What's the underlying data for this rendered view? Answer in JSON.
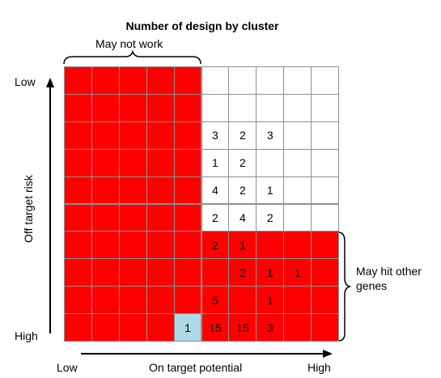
{
  "title": "Number of design by cluster",
  "annotations": {
    "top_brace": "May not work",
    "right_brace_line1": "May hit other",
    "right_brace_line2": "genes"
  },
  "axes": {
    "y_label": "Off target risk",
    "y_low": "Low",
    "y_high": "High",
    "x_label": "On target potential",
    "x_low": "Low",
    "x_high": "High"
  },
  "colors": {
    "red": "#ff0000",
    "white": "#ffffff",
    "highlight": "#add8e6",
    "grid": "#8f8f8f"
  },
  "grid": {
    "rows": [
      {
        "fill": [
          "red",
          "red",
          "red",
          "red",
          "red",
          "white",
          "white",
          "white",
          "white",
          "white"
        ],
        "values": [
          "",
          "",
          "",
          "",
          "",
          "",
          "",
          "",
          "",
          ""
        ]
      },
      {
        "fill": [
          "red",
          "red",
          "red",
          "red",
          "red",
          "white",
          "white",
          "white",
          "white",
          "white"
        ],
        "values": [
          "",
          "",
          "",
          "",
          "",
          "",
          "",
          "",
          "",
          ""
        ]
      },
      {
        "fill": [
          "red",
          "red",
          "red",
          "red",
          "red",
          "white",
          "white",
          "white",
          "white",
          "white"
        ],
        "values": [
          "",
          "",
          "",
          "",
          "",
          "3",
          "2",
          "3",
          "",
          ""
        ]
      },
      {
        "fill": [
          "red",
          "red",
          "red",
          "red",
          "red",
          "white",
          "white",
          "white",
          "white",
          "white"
        ],
        "values": [
          "",
          "",
          "",
          "",
          "",
          "1",
          "2",
          "",
          "",
          ""
        ]
      },
      {
        "fill": [
          "red",
          "red",
          "red",
          "red",
          "red",
          "white",
          "white",
          "white",
          "white",
          "white"
        ],
        "values": [
          "",
          "",
          "",
          "",
          "",
          "4",
          "2",
          "1",
          "",
          ""
        ]
      },
      {
        "fill": [
          "red",
          "red",
          "red",
          "red",
          "red",
          "white",
          "white",
          "white",
          "white",
          "white"
        ],
        "values": [
          "",
          "",
          "",
          "",
          "",
          "2",
          "4",
          "2",
          "",
          ""
        ]
      },
      {
        "fill": [
          "red",
          "red",
          "red",
          "red",
          "red",
          "red",
          "red",
          "red",
          "red",
          "red"
        ],
        "values": [
          "",
          "",
          "",
          "",
          "",
          "2",
          "1",
          "",
          "",
          ""
        ]
      },
      {
        "fill": [
          "red",
          "red",
          "red",
          "red",
          "red",
          "red",
          "red",
          "red",
          "red",
          "red"
        ],
        "values": [
          "",
          "",
          "",
          "",
          "",
          "",
          "2",
          "1",
          "1",
          ""
        ]
      },
      {
        "fill": [
          "red",
          "red",
          "red",
          "red",
          "red",
          "red",
          "red",
          "red",
          "red",
          "red"
        ],
        "values": [
          "",
          "",
          "",
          "",
          "",
          "5",
          "",
          "1",
          "",
          ""
        ]
      },
      {
        "fill": [
          "red",
          "red",
          "red",
          "red",
          "highlight",
          "red",
          "red",
          "red",
          "red",
          "red"
        ],
        "values": [
          "",
          "",
          "",
          "",
          "1",
          "15",
          "15",
          "3",
          "",
          ""
        ]
      }
    ]
  }
}
